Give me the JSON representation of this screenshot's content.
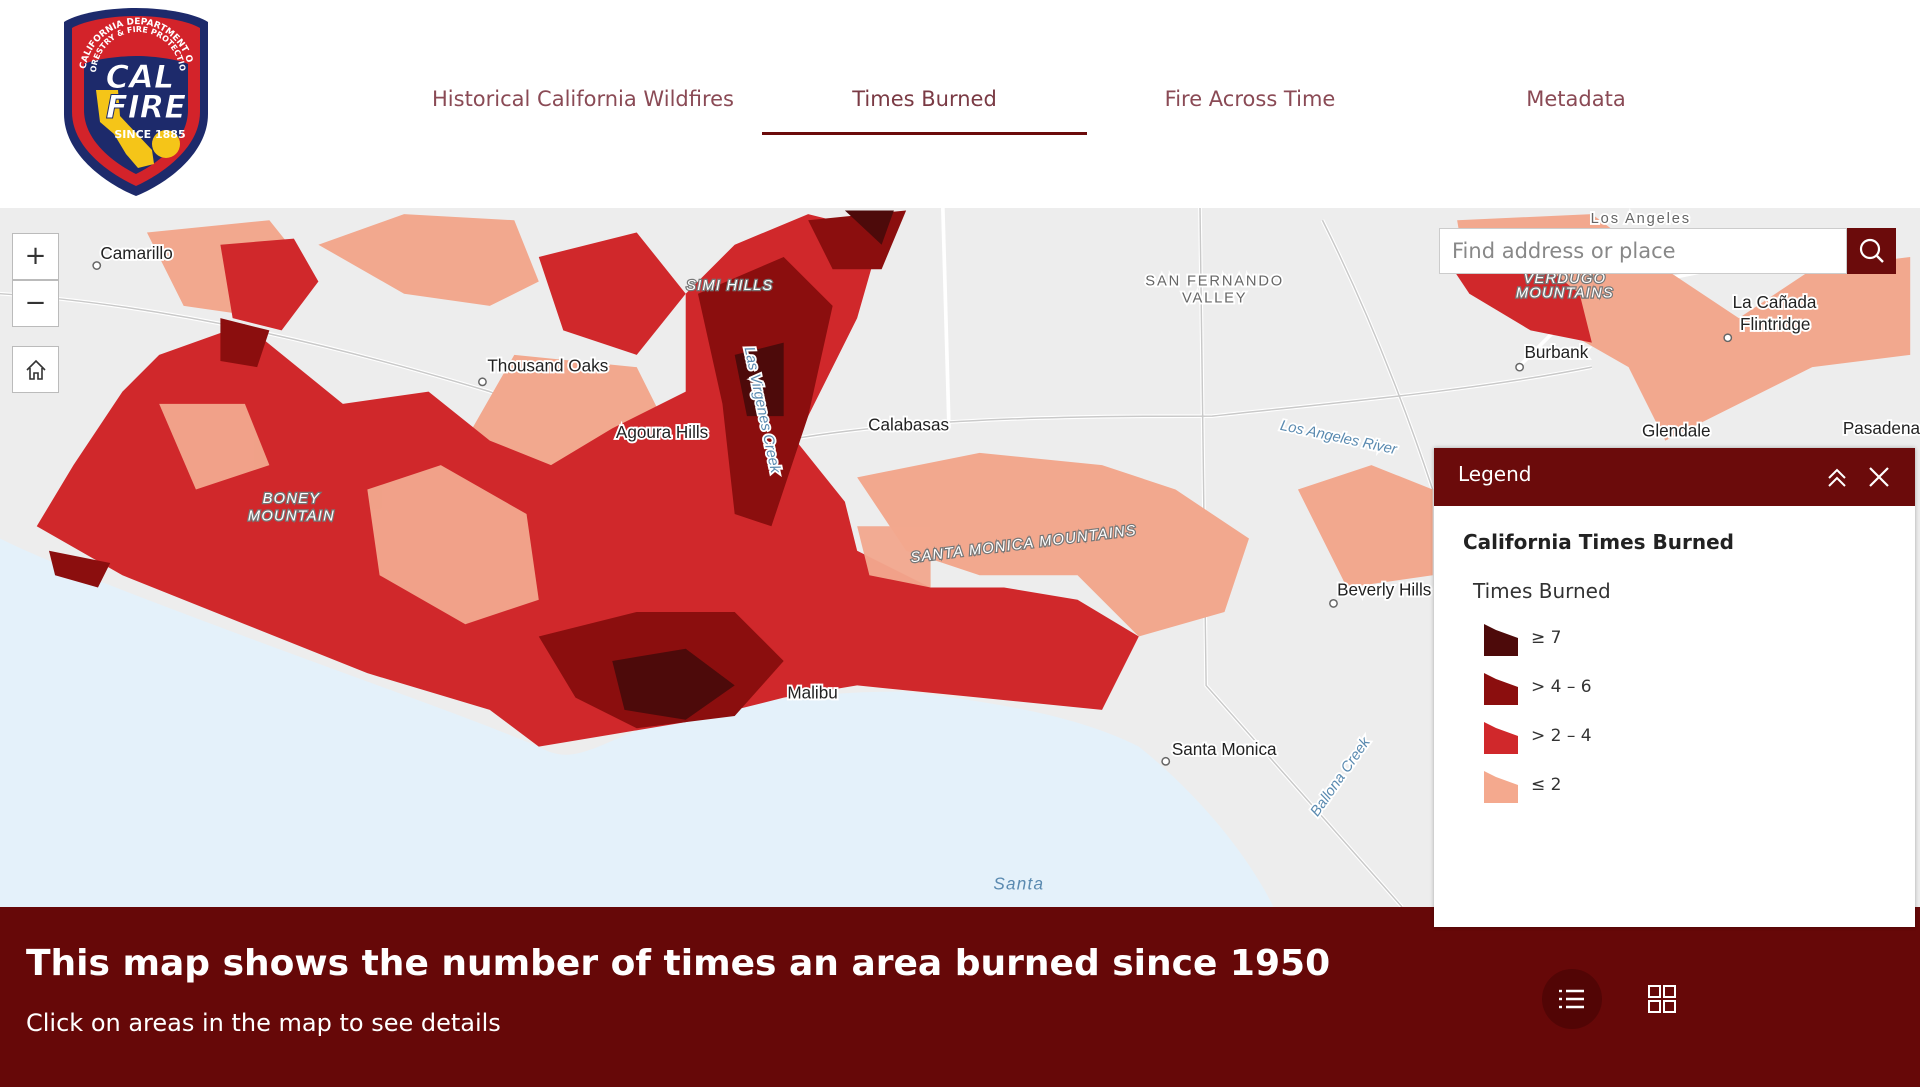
{
  "header": {
    "logo": {
      "arc_top": "CALIFORNIA DEPARTMENT OF",
      "arc_bottom": "FORESTRY & FIRE PROTECTION",
      "lines": [
        "CAL",
        "FIRE"
      ],
      "since": "SINCE 1885"
    },
    "tabs": [
      "Historical California Wildfires",
      "Times Burned",
      "Fire Across Time",
      "Metadata"
    ]
  },
  "map": {
    "zoom_in": "+",
    "zoom_out": "−",
    "search_placeholder": "Find address or place",
    "labels": [
      "Camarillo",
      "Thousand Oaks",
      "Agoura Hills",
      "Calabasas",
      "SIMI HILLS",
      "Las Virgenes Creek",
      "BONEY",
      "MOUNTAIN",
      "SANTA MONICA MOUNTAINS",
      "SAN FERNANDO",
      "VALLEY",
      "Los Angeles River",
      "Beverly Hills",
      "Malibu",
      "Santa Monica",
      "Ballona Creek",
      "Burbank",
      "Glendale",
      "La Cañada",
      "Flintridge",
      "Los Angeles",
      "VERDUGO",
      "MOUNTAINS",
      "Pasadena",
      "Santa"
    ]
  },
  "legend": {
    "title": "Legend",
    "layer": "California Times Burned",
    "field": "Times Burned",
    "items": [
      {
        "label": "≥ 7",
        "color": "#4d0a0a"
      },
      {
        "label": "> 4 – 6",
        "color": "#8b0e0e"
      },
      {
        "label": "> 2 – 4",
        "color": "#d0282b"
      },
      {
        "label": "≤ 2",
        "color": "#f4a98e"
      }
    ]
  },
  "banner": {
    "title": "This map shows the number of times an area burned since 1950",
    "subtitle": "Click on areas in the map to see details"
  }
}
